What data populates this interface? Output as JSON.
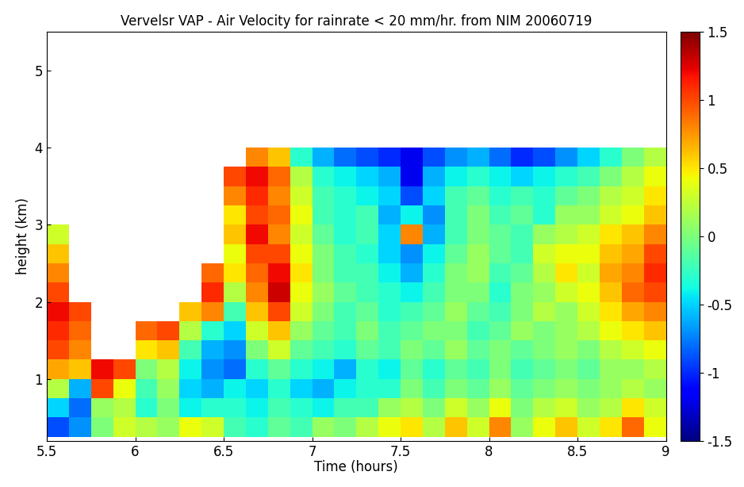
{
  "chart_data": {
    "type": "heatmap",
    "title": "Vervelsr VAP - Air Velocity for rainrate < 20 mm/hr. from NIM 20060719",
    "x_label": "Time (hours)",
    "y_label": "height (km)",
    "xlim": [
      5.5,
      9
    ],
    "ylim": [
      0.2,
      5.5
    ],
    "xticks": [
      5.5,
      6,
      6.5,
      7,
      7.5,
      8,
      8.5,
      9
    ],
    "yticks": [
      1,
      2,
      3,
      4,
      5
    ],
    "colorbar_range": [
      -1.5,
      1.5
    ],
    "colorbar_ticks": [
      -1.5,
      -1,
      -0.5,
      0,
      0.5,
      1,
      1.5
    ],
    "x_edges": [
      5.5,
      5.625,
      5.75,
      5.875,
      6,
      6.125,
      6.25,
      6.375,
      6.5,
      6.625,
      6.75,
      6.875,
      7,
      7.125,
      7.25,
      7.375,
      7.5,
      7.625,
      7.75,
      7.875,
      8,
      8.125,
      8.25,
      8.375,
      8.5,
      8.625,
      8.75,
      8.875,
      9
    ],
    "y_edges": [
      0.25,
      0.5,
      0.75,
      1,
      1.25,
      1.5,
      1.75,
      2,
      2.25,
      2.5,
      2.75,
      3,
      3.25,
      3.5,
      3.75,
      4
    ],
    "cells": [
      [
        -0.9,
        -0.7,
        0.0,
        0.3,
        0.2,
        0.1,
        0.4,
        0.3,
        -0.2,
        -0.3,
        -0.1,
        -0.2,
        0.1,
        0.0,
        0.2,
        0.4,
        0.5,
        0.2,
        0.6,
        0.3,
        0.8,
        0.1,
        0.4,
        0.6,
        0.3,
        0.5,
        0.9,
        0.4
      ],
      [
        -0.5,
        -0.8,
        0.1,
        0.2,
        -0.3,
        0.0,
        -0.4,
        -0.3,
        -0.3,
        -0.4,
        -0.2,
        -0.3,
        -0.4,
        -0.2,
        -0.2,
        0.1,
        0.2,
        0.0,
        0.3,
        0.1,
        0.4,
        0.0,
        0.2,
        0.3,
        0.1,
        0.2,
        0.5,
        0.3
      ],
      [
        0.2,
        -0.6,
        1.0,
        0.4,
        -0.2,
        0.1,
        -0.5,
        -0.6,
        -0.4,
        -0.5,
        -0.3,
        -0.5,
        -0.6,
        -0.4,
        -0.3,
        -0.3,
        0.0,
        -0.2,
        0.0,
        -0.1,
        0.1,
        -0.1,
        0.0,
        0.1,
        0.0,
        0.1,
        0.2,
        0.1
      ],
      [
        0.7,
        0.6,
        1.2,
        1.0,
        0.0,
        0.2,
        -0.4,
        -0.7,
        -0.8,
        -0.3,
        -0.1,
        -0.3,
        -0.4,
        -0.6,
        -0.3,
        -0.4,
        -0.1,
        -0.3,
        -0.1,
        -0.2,
        0.0,
        -0.2,
        -0.1,
        0.0,
        -0.1,
        0.1,
        0.1,
        0.2
      ],
      [
        1.0,
        0.8,
        null,
        null,
        0.5,
        0.6,
        -0.2,
        -0.6,
        -0.7,
        0.0,
        0.3,
        -0.1,
        -0.2,
        -0.3,
        -0.1,
        -0.2,
        0.0,
        -0.1,
        0.1,
        -0.1,
        0.0,
        -0.1,
        0.0,
        0.1,
        0.0,
        0.2,
        0.3,
        0.4
      ],
      [
        1.1,
        0.9,
        null,
        null,
        0.9,
        1.0,
        0.2,
        -0.3,
        -0.5,
        0.3,
        0.6,
        0.1,
        -0.1,
        -0.2,
        0.0,
        -0.2,
        -0.1,
        0.0,
        0.0,
        -0.2,
        -0.1,
        0.1,
        0.0,
        0.1,
        0.2,
        0.4,
        0.5,
        0.6
      ],
      [
        1.2,
        1.0,
        null,
        null,
        null,
        null,
        0.6,
        0.8,
        -0.2,
        0.6,
        1.0,
        0.3,
        0.0,
        -0.2,
        -0.1,
        -0.3,
        -0.2,
        -0.1,
        0.1,
        -0.1,
        -0.2,
        0.0,
        0.2,
        0.1,
        0.3,
        0.5,
        0.7,
        0.8
      ],
      [
        1.0,
        null,
        null,
        null,
        null,
        null,
        null,
        1.1,
        0.2,
        0.8,
        1.3,
        0.4,
        0.1,
        -0.1,
        -0.2,
        -0.3,
        -0.4,
        -0.2,
        0.0,
        0.0,
        -0.3,
        0.0,
        0.1,
        0.3,
        0.4,
        0.6,
        0.9,
        1.0
      ],
      [
        0.8,
        null,
        null,
        null,
        null,
        null,
        null,
        0.9,
        0.5,
        0.9,
        1.2,
        0.5,
        0.0,
        -0.2,
        -0.2,
        -0.4,
        -0.6,
        -0.3,
        0.0,
        0.1,
        -0.2,
        -0.1,
        0.2,
        0.5,
        0.3,
        0.7,
        0.8,
        1.1
      ],
      [
        0.6,
        null,
        null,
        null,
        null,
        null,
        null,
        null,
        0.4,
        1.0,
        1.0,
        0.4,
        0.0,
        -0.2,
        -0.3,
        -0.5,
        -0.7,
        -0.4,
        -0.1,
        0.1,
        -0.1,
        -0.2,
        0.3,
        0.4,
        0.4,
        0.6,
        0.7,
        1.0
      ],
      [
        0.3,
        null,
        null,
        null,
        null,
        null,
        null,
        null,
        0.6,
        1.2,
        0.8,
        0.3,
        -0.1,
        -0.3,
        -0.2,
        -0.5,
        0.8,
        -0.6,
        -0.2,
        0.0,
        -0.1,
        -0.2,
        0.1,
        0.2,
        0.3,
        0.5,
        0.6,
        0.8
      ],
      [
        null,
        null,
        null,
        null,
        null,
        null,
        null,
        null,
        0.5,
        1.0,
        0.9,
        0.4,
        -0.2,
        -0.3,
        -0.2,
        -0.6,
        -0.4,
        -0.7,
        -0.2,
        0.0,
        -0.2,
        -0.1,
        -0.3,
        0.1,
        0.1,
        0.3,
        0.4,
        0.6
      ],
      [
        null,
        null,
        null,
        null,
        null,
        null,
        null,
        null,
        0.8,
        1.1,
        0.8,
        0.3,
        -0.2,
        -0.3,
        -0.4,
        -0.5,
        -0.9,
        -0.5,
        -0.2,
        -0.1,
        -0.3,
        -0.2,
        -0.3,
        -0.1,
        0.0,
        0.2,
        0.3,
        0.5
      ],
      [
        null,
        null,
        null,
        null,
        null,
        null,
        null,
        null,
        1.0,
        1.2,
        0.9,
        0.2,
        -0.3,
        -0.4,
        -0.5,
        -0.6,
        -1.2,
        -0.6,
        -0.4,
        -0.3,
        -0.4,
        -0.5,
        -0.4,
        -0.3,
        -0.2,
        0.0,
        0.2,
        0.4
      ],
      [
        null,
        null,
        null,
        null,
        null,
        null,
        null,
        null,
        null,
        0.8,
        0.6,
        -0.3,
        -0.6,
        -0.8,
        -0.9,
        -1.0,
        -1.2,
        -0.9,
        -0.7,
        -0.6,
        -0.8,
        -1.0,
        -0.9,
        -0.7,
        -0.5,
        -0.3,
        0.0,
        0.2
      ]
    ]
  }
}
